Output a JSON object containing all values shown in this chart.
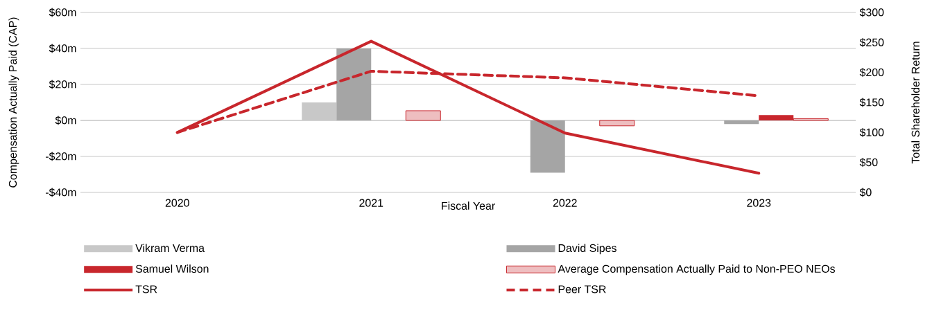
{
  "chart_data": {
    "type": "bar",
    "xlabel": "Fiscal Year",
    "ylabel": "Compensation Actually Paid (CAP)",
    "y2label": "Total Shareholder Return",
    "categories": [
      "2020",
      "2021",
      "2022",
      "2023"
    ],
    "series": [
      {
        "name": "Vikram Verma",
        "color": "#c8c8c8",
        "values": [
          null,
          10,
          null,
          null
        ]
      },
      {
        "name": "David Sipes",
        "color": "#a5a5a5",
        "values": [
          null,
          40,
          -29,
          -2
        ]
      },
      {
        "name": "Samuel Wilson",
        "color": "#c8262c",
        "values": [
          null,
          null,
          null,
          3
        ]
      },
      {
        "name": "Average Compensation Actually Paid to Non-PEO NEOs",
        "color": "#c8262c",
        "values": [
          null,
          5.4,
          -3,
          1
        ]
      },
      {
        "name": "TSR",
        "type": "line",
        "axis": "y2",
        "color": "#c8262c",
        "line_style": "solid",
        "values": [
          100,
          252,
          99,
          32
        ]
      },
      {
        "name": "Peer TSR",
        "type": "line",
        "axis": "y2",
        "color": "#c8262c",
        "line_style": "dashed",
        "values": [
          100,
          202,
          191,
          161
        ]
      }
    ],
    "ylim": [
      -40,
      60
    ],
    "yticks": [
      {
        "value": -40,
        "label": "-$40m"
      },
      {
        "value": -20,
        "label": "-$20m"
      },
      {
        "value": 0,
        "label": "$0m"
      },
      {
        "value": 20,
        "label": "$20m"
      },
      {
        "value": 40,
        "label": "$40m"
      },
      {
        "value": 60,
        "label": "$60m"
      }
    ],
    "y2lim": [
      0,
      300
    ],
    "y2ticks": [
      {
        "value": 0,
        "label": "$0"
      },
      {
        "value": 50,
        "label": "$50"
      },
      {
        "value": 100,
        "label": "$100"
      },
      {
        "value": 150,
        "label": "$150"
      },
      {
        "value": 200,
        "label": "$200"
      },
      {
        "value": 250,
        "label": "$250"
      },
      {
        "value": 300,
        "label": "$300"
      }
    ],
    "grid": "y",
    "legend": "bottom"
  }
}
